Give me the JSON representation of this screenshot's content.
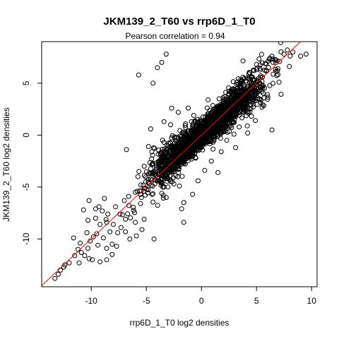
{
  "chart_data": {
    "type": "scatter",
    "title": "JKM139_2_T60 vs rrp6D_1_T0",
    "subtitle_prefix": "Pearson correlation = ",
    "pearson": "0.94",
    "xlabel": "rrp6D_1_T0 log2 densities",
    "ylabel": "JKM139_2_T60 log2 densities",
    "xlim": [
      -14.5,
      10.5
    ],
    "ylim": [
      -14.6,
      9.0
    ],
    "xticks": [
      "-10",
      "-5",
      "0",
      "5",
      "10"
    ],
    "yticks": [
      "-10",
      "-5",
      "0",
      "5"
    ],
    "fit_line": {
      "intercept": 0.0,
      "slope": 1.0,
      "color": "#ff0000"
    },
    "density_core": {
      "center": [
        0.5,
        0.5
      ],
      "slope": 0.92,
      "count": 2600,
      "note_seed": 17
    },
    "points": [
      [
        -13.3,
        -13.8
      ],
      [
        -12.8,
        -13.0
      ],
      [
        -12.5,
        -12.7
      ],
      [
        -12.0,
        -12.3
      ],
      [
        -11.5,
        -11.6
      ],
      [
        -11.2,
        -11.0
      ],
      [
        -10.6,
        -11.6
      ],
      [
        -11.0,
        -10.4
      ],
      [
        -10.3,
        -10.9
      ],
      [
        -10.1,
        -10.2
      ],
      [
        -11.6,
        -9.9
      ],
      [
        -10.4,
        -9.4
      ],
      [
        -9.8,
        -9.8
      ],
      [
        -9.5,
        -9.5
      ],
      [
        -9.2,
        -8.6
      ],
      [
        -8.9,
        -9.9
      ],
      [
        -8.6,
        -10.9
      ],
      [
        -8.1,
        -10.5
      ],
      [
        -9.0,
        -7.3
      ],
      [
        -8.5,
        -7.6
      ],
      [
        -10.7,
        -7.2
      ],
      [
        -10.3,
        -8.2
      ],
      [
        -9.6,
        -8.0
      ],
      [
        -8.6,
        -8.4
      ],
      [
        -8.0,
        -8.6
      ],
      [
        -7.6,
        -9.4
      ],
      [
        -6.9,
        -9.3
      ],
      [
        -6.5,
        -10.0
      ],
      [
        -5.9,
        -9.7
      ],
      [
        -5.4,
        -9.1
      ],
      [
        -4.3,
        -10.0
      ],
      [
        -6.0,
        -8.4
      ],
      [
        -5.2,
        -8.1
      ],
      [
        -10.2,
        -6.3
      ],
      [
        -9.3,
        -6.9
      ],
      [
        -8.8,
        -6.1
      ],
      [
        -7.8,
        -6.9
      ],
      [
        -7.4,
        -7.6
      ],
      [
        -7.0,
        -6.3
      ],
      [
        -6.6,
        -5.9
      ],
      [
        -6.0,
        -5.5
      ],
      [
        -5.5,
        -4.8
      ],
      [
        -5.1,
        -5.1
      ],
      [
        -4.6,
        -4.2
      ],
      [
        -4.2,
        -3.9
      ],
      [
        -3.6,
        -5.6
      ],
      [
        -3.2,
        -6.0
      ],
      [
        -2.5,
        -4.7
      ],
      [
        -2.0,
        -4.9
      ],
      [
        -1.6,
        -6.5
      ],
      [
        -1.8,
        -7.1
      ],
      [
        -1.6,
        -8.4
      ],
      [
        -0.8,
        -5.7
      ],
      [
        -0.3,
        -4.4
      ],
      [
        0.3,
        -3.4
      ],
      [
        -4.5,
        -1.6
      ],
      [
        -4.8,
        -1.1
      ],
      [
        -3.4,
        -0.7
      ],
      [
        -6.8,
        -1.4
      ],
      [
        -4.6,
        0.6
      ],
      [
        -3.4,
        1.3
      ],
      [
        -2.8,
        1.0
      ],
      [
        -2.1,
        2.2
      ],
      [
        -1.2,
        2.6
      ],
      [
        -0.7,
        1.9
      ],
      [
        -4.4,
        5.0
      ],
      [
        -4.0,
        6.5
      ],
      [
        -5.7,
        5.8
      ],
      [
        -3.6,
        7.0
      ],
      [
        -3.2,
        7.8
      ],
      [
        -2.7,
        2.6
      ],
      [
        0.6,
        3.4
      ],
      [
        1.6,
        3.5
      ],
      [
        2.8,
        3.6
      ],
      [
        3.6,
        5.2
      ],
      [
        4.3,
        5.9
      ],
      [
        5.0,
        6.3
      ],
      [
        5.8,
        6.9
      ],
      [
        6.2,
        7.4
      ],
      [
        6.5,
        7.0
      ],
      [
        7.1,
        7.1
      ],
      [
        7.5,
        7.8
      ],
      [
        7.8,
        8.2
      ],
      [
        9.0,
        7.6
      ],
      [
        9.5,
        7.8
      ],
      [
        8.3,
        8.0
      ],
      [
        6.9,
        6.2
      ],
      [
        4.5,
        3.6
      ],
      [
        3.8,
        2.2
      ],
      [
        5.5,
        2.7
      ],
      [
        6.0,
        3.9
      ],
      [
        4.9,
        1.4
      ],
      [
        6.4,
        0.5
      ],
      [
        4.2,
        0.2
      ],
      [
        2.3,
        -0.5
      ],
      [
        1.8,
        -1.6
      ],
      [
        3.1,
        -1.2
      ],
      [
        0.9,
        -2.5
      ],
      [
        1.5,
        -3.6
      ],
      [
        2.2,
        2.2
      ],
      [
        -6.9,
        -8.1
      ],
      [
        -7.3,
        -8.9
      ],
      [
        -8.3,
        -9.3
      ],
      [
        -9.4,
        -10.6
      ],
      [
        -10.9,
        -11.3
      ],
      [
        -10.2,
        -11.9
      ],
      [
        -9.9,
        -12.0
      ],
      [
        -9.2,
        -12.2
      ],
      [
        -8.6,
        -12.0
      ],
      [
        -8.1,
        -11.5
      ],
      [
        -7.7,
        -10.7
      ],
      [
        -12.4,
        -12.5
      ],
      [
        -13.0,
        -13.4
      ],
      [
        -11.1,
        -12.3
      ],
      [
        -9.6,
        -7.1
      ]
    ]
  }
}
